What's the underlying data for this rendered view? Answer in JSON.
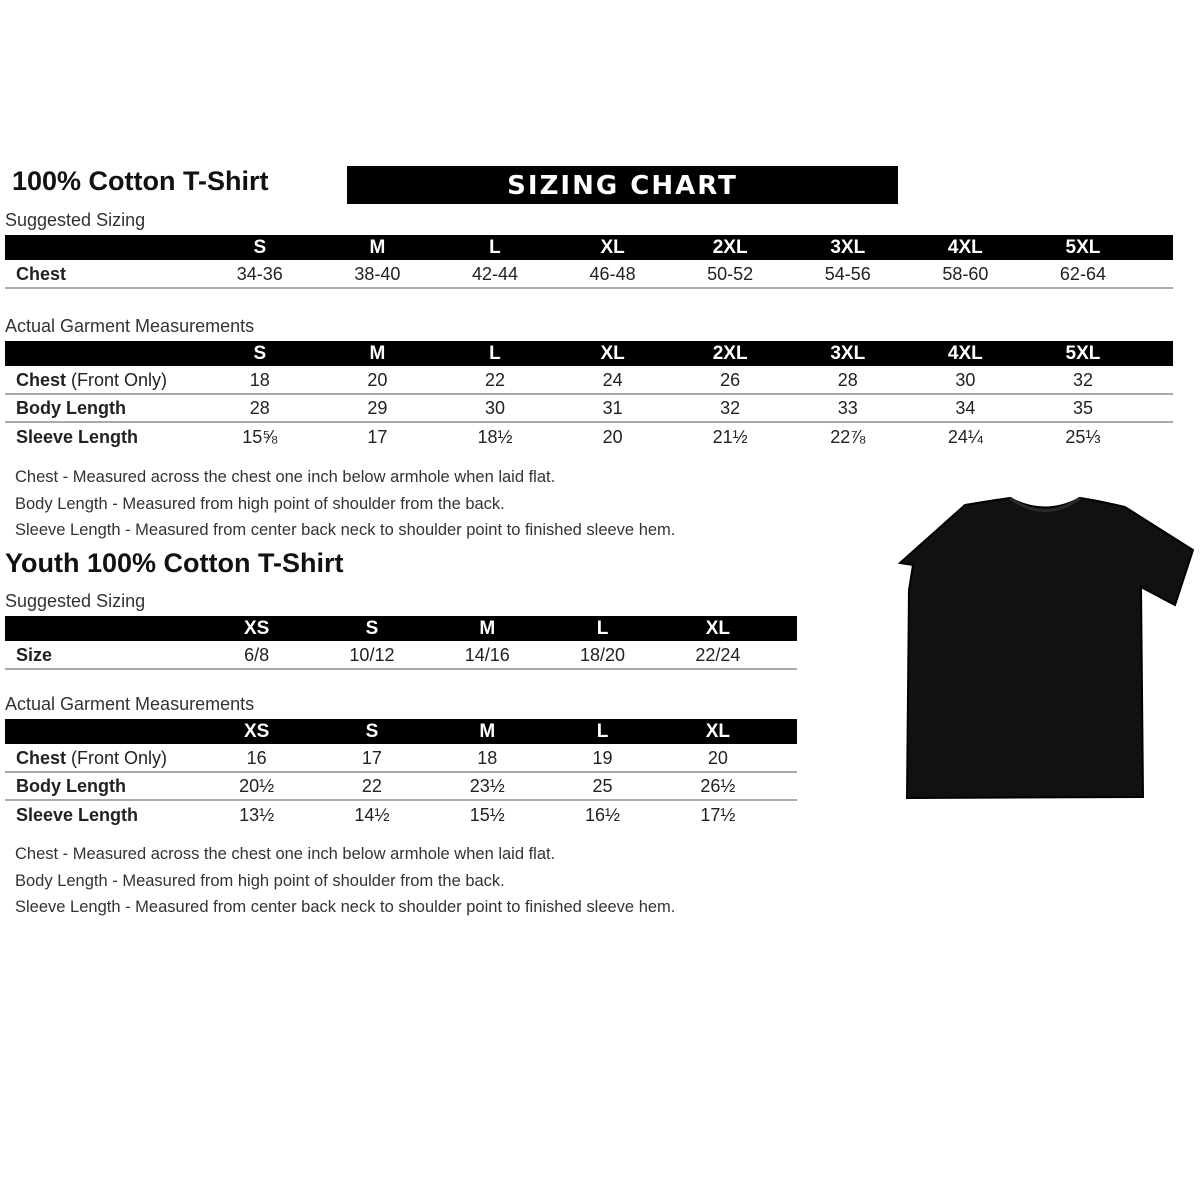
{
  "adult": {
    "title": "100% Cotton T-Shirt",
    "banner": "SIZING CHART",
    "suggested": {
      "label": "Suggested Sizing",
      "sizes": [
        "S",
        "M",
        "L",
        "XL",
        "2XL",
        "3XL",
        "4XL",
        "5XL"
      ],
      "rows": [
        {
          "label": "Chest",
          "extra": "",
          "values": [
            "34-36",
            "38-40",
            "42-44",
            "46-48",
            "50-52",
            "54-56",
            "58-60",
            "62-64"
          ]
        }
      ]
    },
    "actual": {
      "label": "Actual Garment Measurements",
      "sizes": [
        "S",
        "M",
        "L",
        "XL",
        "2XL",
        "3XL",
        "4XL",
        "5XL"
      ],
      "rows": [
        {
          "label": "Chest",
          "extra": " (Front Only)",
          "values": [
            "18",
            "20",
            "22",
            "24",
            "26",
            "28",
            "30",
            "32"
          ]
        },
        {
          "label": "Body Length",
          "extra": "",
          "values": [
            "28",
            "29",
            "30",
            "31",
            "32",
            "33",
            "34",
            "35"
          ]
        },
        {
          "label": "Sleeve Length",
          "extra": "",
          "values": [
            "15⅝",
            "17",
            "18½",
            "20",
            "21½",
            "22⅞",
            "24¼",
            "25⅓"
          ]
        }
      ]
    },
    "notes": [
      "Chest - Measured across the chest one inch below armhole when laid flat.",
      "Body Length - Measured from high point of shoulder from the back.",
      "Sleeve Length - Measured from center back neck to shoulder point to finished sleeve hem."
    ]
  },
  "youth": {
    "title": "Youth 100% Cotton T-Shirt",
    "suggested": {
      "label": "Suggested Sizing",
      "sizes": [
        "XS",
        "S",
        "M",
        "L",
        "XL"
      ],
      "rows": [
        {
          "label": "Size",
          "extra": "",
          "values": [
            "6/8",
            "10/12",
            "14/16",
            "18/20",
            "22/24"
          ]
        }
      ]
    },
    "actual": {
      "label": "Actual Garment Measurements",
      "sizes": [
        "XS",
        "S",
        "M",
        "L",
        "XL"
      ],
      "rows": [
        {
          "label": "Chest",
          "extra": " (Front Only)",
          "values": [
            "16",
            "17",
            "18",
            "19",
            "20"
          ]
        },
        {
          "label": "Body Length",
          "extra": "",
          "values": [
            "20½",
            "22",
            "23½",
            "25",
            "26½"
          ]
        },
        {
          "label": "Sleeve Length",
          "extra": "",
          "values": [
            "13½",
            "14½",
            "15½",
            "16½",
            "17½"
          ]
        }
      ]
    },
    "notes": [
      "Chest - Measured across the chest one inch below armhole when laid flat.",
      "Body Length - Measured from high point of shoulder from the back.",
      "Sleeve Length - Measured from center back neck to shoulder point to finished sleeve hem."
    ]
  },
  "image": {
    "icon": "t-shirt-icon",
    "color": "#111111"
  }
}
